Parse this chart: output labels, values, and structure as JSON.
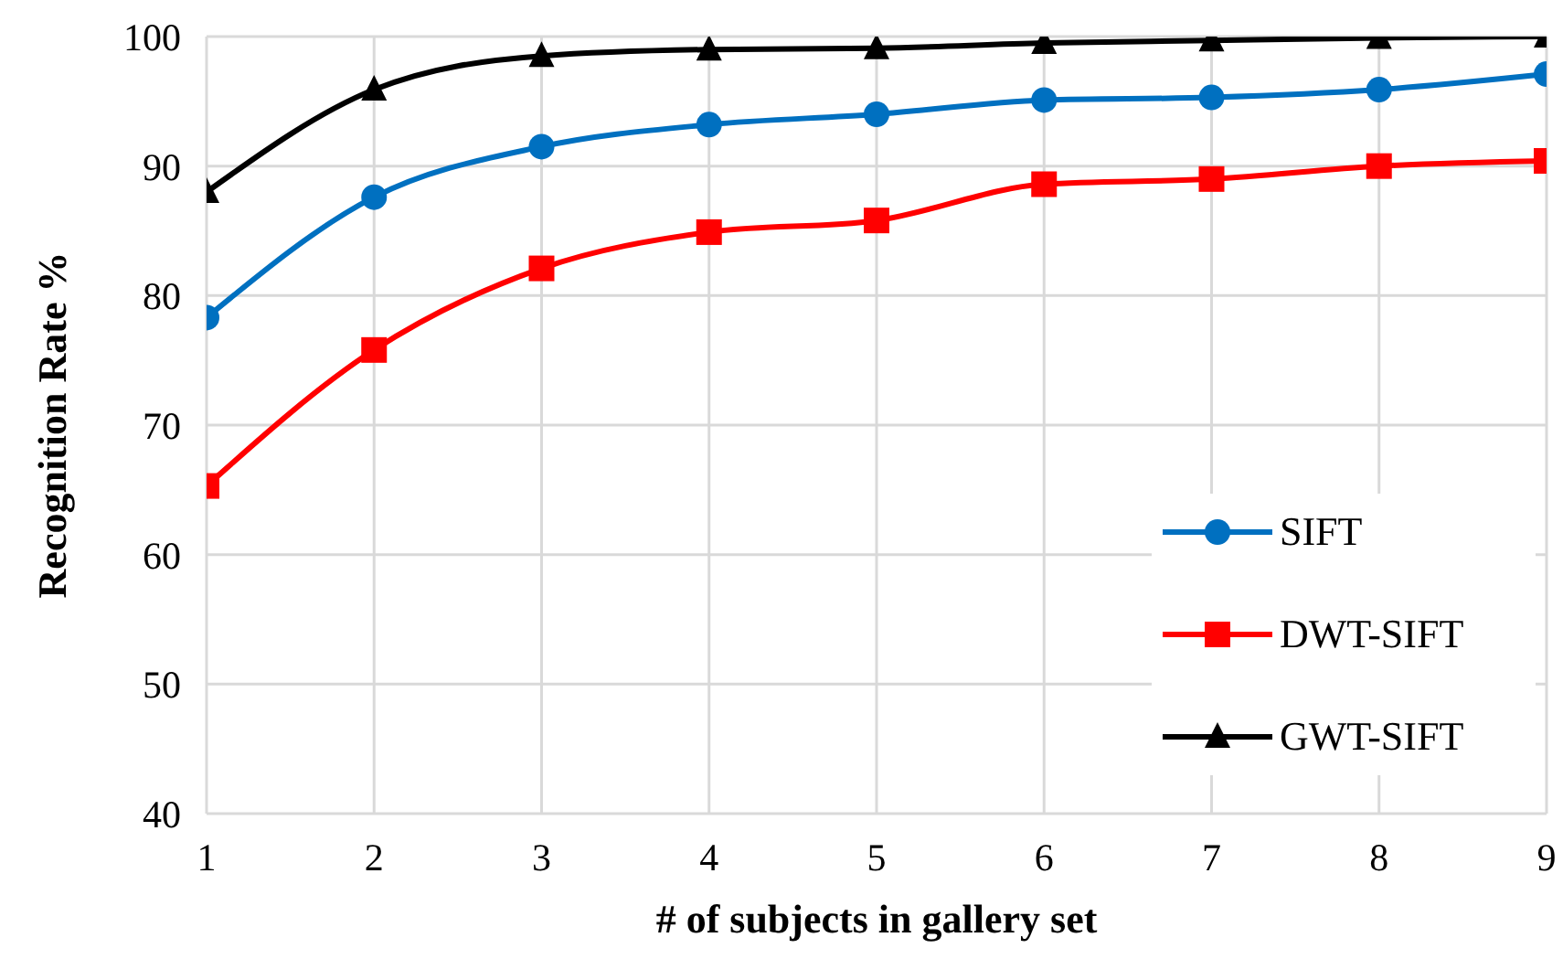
{
  "chart_data": {
    "type": "line",
    "xlabel": "# of subjects in gallery set",
    "ylabel": "Recognition Rate %",
    "x": [
      1,
      2,
      3,
      4,
      5,
      6,
      7,
      8,
      9
    ],
    "xlim": [
      1,
      9
    ],
    "xticks": [
      1,
      2,
      3,
      4,
      5,
      6,
      7,
      8,
      9
    ],
    "ylim": [
      40,
      100
    ],
    "yticks": [
      40,
      50,
      60,
      70,
      80,
      90,
      100
    ],
    "grid": true,
    "legend": "bottom right",
    "series": [
      {
        "name": "SIFT",
        "color": "#0070c0",
        "marker": "circle",
        "values": [
          78.3,
          87.6,
          91.5,
          93.2,
          94.0,
          95.1,
          95.3,
          95.9,
          97.1
        ]
      },
      {
        "name": "DWT-SIFT",
        "color": "#ff0000",
        "marker": "square",
        "values": [
          65.3,
          75.8,
          82.1,
          84.9,
          85.8,
          88.6,
          89.0,
          90.0,
          90.4
        ]
      },
      {
        "name": "GWT-SIFT",
        "color": "#000000",
        "marker": "triangle",
        "values": [
          88.0,
          95.9,
          98.5,
          99.0,
          99.1,
          99.5,
          99.7,
          99.9,
          100.0
        ]
      }
    ]
  }
}
